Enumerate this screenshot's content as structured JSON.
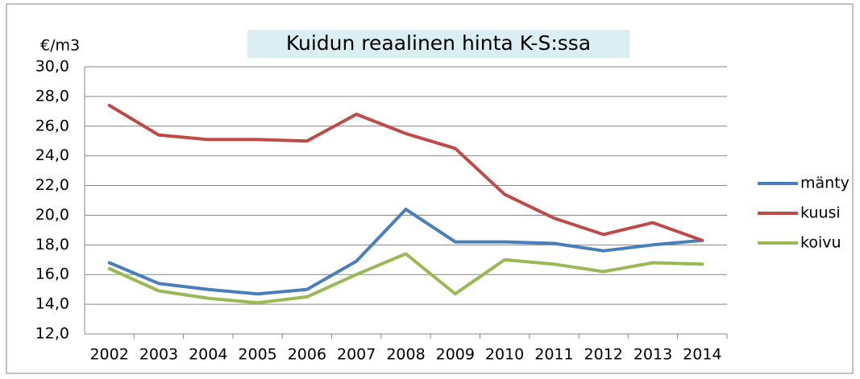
{
  "chart_data": {
    "type": "line",
    "title": "Kuidun reaalinen hinta K-S:ssa",
    "y_label": "€/m3",
    "categories": [
      "2002",
      "2003",
      "2004",
      "2005",
      "2006",
      "2007",
      "2008",
      "2009",
      "2010",
      "2011",
      "2012",
      "2013",
      "2014"
    ],
    "series": [
      {
        "name": "mänty",
        "color": "#4a7ebb",
        "values": [
          16.8,
          15.4,
          15.0,
          14.7,
          15.0,
          16.9,
          20.4,
          18.2,
          18.2,
          18.1,
          17.6,
          18.0,
          18.3
        ]
      },
      {
        "name": "kuusi",
        "color": "#be4b48",
        "values": [
          27.4,
          25.4,
          25.1,
          25.1,
          25.0,
          26.8,
          25.5,
          24.5,
          21.4,
          19.8,
          18.7,
          19.5,
          18.3
        ]
      },
      {
        "name": "koivu",
        "color": "#98b954",
        "values": [
          16.4,
          14.9,
          14.4,
          14.1,
          14.5,
          16.0,
          17.4,
          14.7,
          17.0,
          16.7,
          16.2,
          16.8,
          16.7
        ]
      }
    ],
    "ylim": [
      12,
      30
    ],
    "yticks": [
      {
        "value": 12,
        "label": "12,0"
      },
      {
        "value": 14,
        "label": "14,0"
      },
      {
        "value": 16,
        "label": "16,0"
      },
      {
        "value": 18,
        "label": "18,0"
      },
      {
        "value": 20,
        "label": "20,0"
      },
      {
        "value": 22,
        "label": "22,0"
      },
      {
        "value": 24,
        "label": "24,0"
      },
      {
        "value": 26,
        "label": "26,0"
      },
      {
        "value": 28,
        "label": "28,0"
      },
      {
        "value": 30,
        "label": "30,0"
      }
    ],
    "grid": true,
    "legend": "right"
  }
}
